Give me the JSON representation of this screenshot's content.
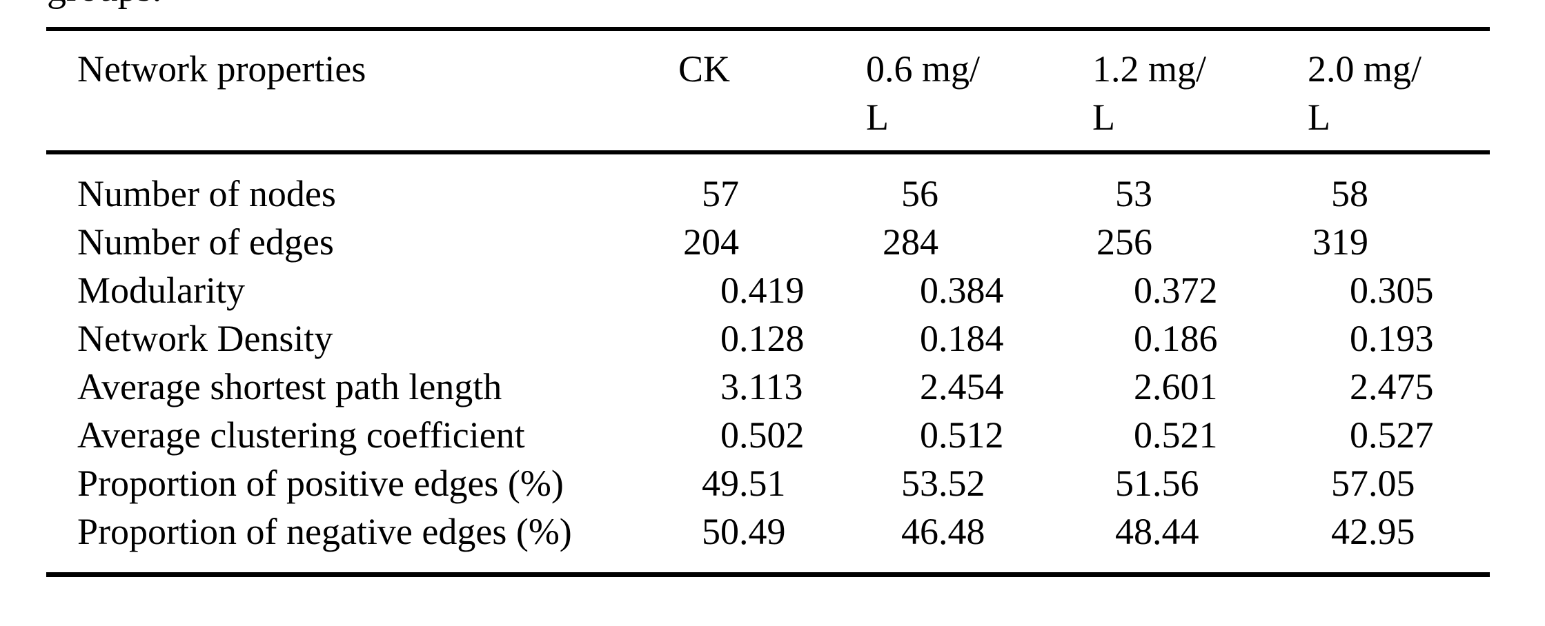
{
  "page": {
    "clipped_caption_fragment": "groups.",
    "colors": {
      "background": "#ffffff",
      "text": "#000000",
      "rule": "#000000"
    }
  },
  "table": {
    "header": {
      "row_label": "Network properties",
      "columns": [
        {
          "label": "CK",
          "lines": [
            "CK"
          ]
        },
        {
          "label": "0.6 mg/L",
          "lines": [
            "0.6 mg/",
            "L"
          ]
        },
        {
          "label": "1.2 mg/L",
          "lines": [
            "1.2 mg/",
            "L"
          ]
        },
        {
          "label": "2.0 mg/L",
          "lines": [
            "2.0 mg/",
            "L"
          ]
        }
      ]
    },
    "rows": [
      {
        "label": "Number of nodes",
        "values": [
          "57",
          "56",
          "53",
          "58"
        ]
      },
      {
        "label": "Number of edges",
        "values": [
          "204",
          "284",
          "256",
          "319"
        ]
      },
      {
        "label": "Modularity",
        "values": [
          "0.419",
          "0.384",
          "0.372",
          "0.305"
        ]
      },
      {
        "label": "Network Density",
        "values": [
          "0.128",
          "0.184",
          "0.186",
          "0.193"
        ]
      },
      {
        "label": "Average shortest path length",
        "values": [
          "3.113",
          "2.454",
          "2.601",
          "2.475"
        ]
      },
      {
        "label": "Average clustering coefficient",
        "values": [
          "0.502",
          "0.512",
          "0.521",
          "0.527"
        ]
      },
      {
        "label": "Proportion of positive edges (%)",
        "values": [
          "49.51",
          "53.52",
          "51.56",
          "57.05"
        ]
      },
      {
        "label": "Proportion of negative edges (%)",
        "values": [
          "50.49",
          "46.48",
          "48.44",
          "42.95"
        ]
      }
    ]
  }
}
